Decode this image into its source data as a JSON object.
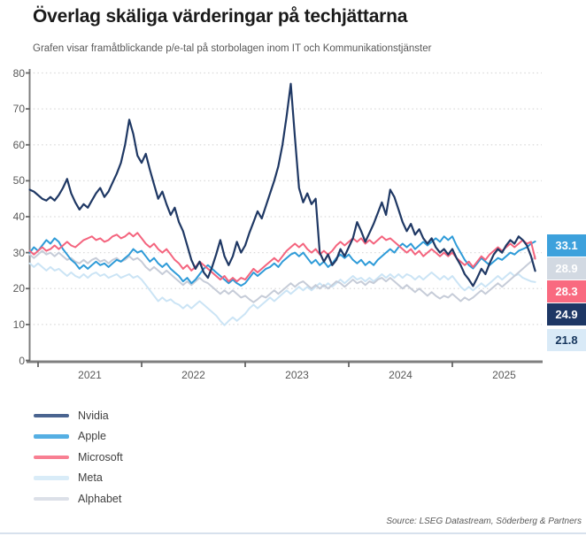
{
  "chart_data": {
    "type": "line",
    "title": "Överlag skäliga värderingar på techjättarna",
    "subtitle": "Grafen visar framåtblickande p/e-tal på storbolagen inom IT och Kommunikationstjänster",
    "source": "Source: LSEG Datastream, Söderberg & Partners",
    "xlabel": "",
    "ylabel": "",
    "ylim": [
      0,
      80
    ],
    "y_ticks": [
      0,
      10,
      20,
      30,
      40,
      50,
      60,
      70,
      80
    ],
    "x_tick_labels": [
      "2021",
      "2022",
      "2023",
      "2024",
      "2025"
    ],
    "x_tick_years": [
      2021,
      2022,
      2023,
      2024,
      2025
    ],
    "grid": "dotted-horizontal",
    "legend_position": "below-left",
    "x_start": 2020.92,
    "x_step": 0.04,
    "series": [
      {
        "name": "Meta",
        "color": "#cbe4f5",
        "values": [
          27,
          26,
          27,
          26,
          25,
          26,
          25,
          25.5,
          24.5,
          23.5,
          24.5,
          23.5,
          23,
          24,
          23,
          24,
          24.5,
          23.5,
          24,
          23,
          23.5,
          24,
          23,
          23.5,
          24,
          23,
          23.5,
          22.5,
          21,
          19.5,
          18,
          16.5,
          17.5,
          16.5,
          17,
          16,
          15.5,
          14.5,
          15.5,
          14.5,
          15.5,
          16.5,
          15.5,
          14.5,
          13.5,
          12.5,
          11,
          9.8,
          11,
          12,
          11,
          12,
          13,
          14.5,
          15.5,
          14.5,
          15.5,
          16.5,
          17.5,
          16.5,
          17.5,
          18.5,
          19.5,
          18.5,
          19.5,
          20.5,
          19.5,
          20.5,
          19.5,
          20.5,
          21.5,
          20.5,
          21.5,
          20.5,
          21.5,
          22.5,
          21.5,
          22.5,
          23.5,
          22.5,
          23,
          22,
          23,
          22,
          23,
          24,
          23,
          24,
          23,
          24,
          23,
          24,
          23.5,
          22.5,
          23.5,
          22.5,
          23.5,
          24.5,
          23.5,
          22.5,
          23.5,
          22.5,
          23.5,
          22,
          20.5,
          19.5,
          20.5,
          19.5,
          20.5,
          21.5,
          20.5,
          21.5,
          22.5,
          23.5,
          22.5,
          23.5,
          24.5,
          23.5,
          24,
          23,
          22.5,
          22,
          21.8
        ]
      },
      {
        "name": "Alphabet",
        "color": "#c6ccd8",
        "values": [
          29.5,
          28.5,
          29.5,
          30.5,
          29.5,
          30,
          29,
          30,
          29,
          28,
          28.5,
          27.5,
          27,
          28,
          27,
          28,
          28.5,
          27.5,
          28,
          27,
          28,
          28.5,
          27.5,
          28,
          29,
          28,
          28.5,
          27.5,
          26,
          25,
          26,
          25,
          24,
          25,
          24,
          23,
          22,
          21,
          22,
          21,
          22,
          23,
          22,
          21.5,
          20.5,
          19.5,
          18.5,
          19.5,
          18.5,
          19.5,
          18.5,
          17.5,
          18,
          17,
          16.2,
          17,
          18,
          17.5,
          18.5,
          19.5,
          18.5,
          19.5,
          20.5,
          21.5,
          20.5,
          21.5,
          22,
          21,
          20,
          21,
          20,
          21,
          20,
          21,
          22,
          21.5,
          20.5,
          21.5,
          22.5,
          21.5,
          22,
          21,
          22,
          21.5,
          22.5,
          23,
          22,
          23,
          22,
          21,
          20,
          21,
          20,
          19,
          20,
          19,
          18,
          19,
          18,
          17.2,
          18,
          17.5,
          18.5,
          17.5,
          16.5,
          17.5,
          16.8,
          17.5,
          18.5,
          19.5,
          18.5,
          19.5,
          20.5,
          21.5,
          20.5,
          21.5,
          22.5,
          23.5,
          24.5,
          25.5,
          26.5,
          27.5,
          28.9
        ]
      },
      {
        "name": "Apple",
        "color": "#2e9bd8",
        "values": [
          30,
          31.5,
          30.5,
          32,
          33.5,
          32.5,
          34,
          33,
          31,
          29.5,
          28,
          27,
          25.5,
          26.5,
          25.5,
          26.5,
          27.5,
          26.5,
          27,
          26,
          27,
          28,
          27.5,
          28.5,
          29.5,
          31,
          30,
          30.5,
          29,
          27.5,
          28.5,
          27,
          26,
          27,
          25.5,
          24.5,
          23.5,
          22,
          23,
          21.5,
          22.5,
          24,
          25.5,
          26.5,
          25.5,
          24.5,
          23.5,
          22.5,
          21.5,
          22.5,
          21.5,
          20.8,
          21.5,
          23,
          24.5,
          23.5,
          24.5,
          25.5,
          26,
          27,
          26,
          27.5,
          28.5,
          29.5,
          30,
          29,
          30,
          28.5,
          27,
          28,
          26.5,
          27.5,
          26,
          27,
          28.5,
          29.5,
          28.5,
          29.5,
          28,
          27,
          28,
          26.5,
          27.5,
          26.5,
          28,
          29,
          30,
          31,
          30,
          31.5,
          32.5,
          31.5,
          32.5,
          31,
          32,
          33,
          32,
          33,
          34,
          33,
          34.5,
          33.5,
          34.5,
          32,
          30,
          28,
          26.5,
          25.6,
          27,
          28.5,
          27.5,
          26.5,
          27.5,
          28.5,
          28,
          29,
          30,
          29.5,
          30.5,
          31,
          31.5,
          32.5,
          33.1
        ]
      },
      {
        "name": "Microsoft",
        "color": "#f4647e",
        "values": [
          30.5,
          29.5,
          30.5,
          31.5,
          30.5,
          31,
          32,
          31,
          32,
          33,
          32,
          31.5,
          32.5,
          33.5,
          34,
          34.5,
          33.5,
          34,
          33,
          33.5,
          34.5,
          35,
          34,
          34.5,
          35.5,
          34.5,
          35.5,
          34,
          32.5,
          31.5,
          32.5,
          31,
          30,
          31,
          29.5,
          28,
          27,
          25.5,
          26.5,
          25,
          26,
          27.5,
          26.5,
          25.5,
          24.5,
          23.5,
          22.5,
          23.5,
          22,
          23,
          22,
          23,
          22.5,
          24,
          25.5,
          24.5,
          25.5,
          26.5,
          27.5,
          28.5,
          27.5,
          29,
          30.5,
          31.5,
          32.5,
          31.5,
          32.5,
          31,
          30,
          31,
          29.5,
          30.5,
          29.5,
          30.5,
          32,
          33,
          32,
          33,
          34,
          33,
          34,
          32.5,
          33.5,
          32.5,
          33.5,
          34.5,
          33.5,
          34,
          33,
          32,
          31,
          30,
          31,
          29.5,
          30.5,
          29,
          30,
          31,
          30,
          29,
          30,
          29,
          30,
          28.5,
          27.5,
          26.5,
          27.5,
          26,
          27.5,
          29,
          28,
          29.5,
          30.5,
          31.5,
          30.5,
          31.5,
          32.5,
          31.5,
          32.5,
          33.5,
          32.5,
          33,
          28.3
        ]
      },
      {
        "name": "Nvidia",
        "color": "#1f3864",
        "values": [
          47.5,
          47,
          46,
          45,
          44.5,
          45.5,
          44.5,
          46,
          48,
          50.5,
          46.5,
          44,
          42,
          43.5,
          42.5,
          44.5,
          46.5,
          48,
          45.5,
          47,
          49.5,
          52,
          55,
          60,
          67,
          63,
          57,
          55,
          57.5,
          53,
          49,
          45,
          47,
          43.5,
          40.5,
          42.5,
          38.5,
          36,
          32,
          28,
          25.5,
          27.5,
          24.5,
          23,
          26,
          29.5,
          33.5,
          29,
          26.5,
          29,
          33,
          30,
          32,
          35.5,
          38.5,
          41.5,
          39.5,
          43,
          46.5,
          50,
          54,
          60,
          68,
          77,
          62,
          48,
          44,
          46.5,
          43.5,
          45,
          30,
          27.5,
          29.5,
          26.5,
          28,
          31,
          29,
          31.5,
          34,
          38.5,
          36,
          33,
          35.5,
          38,
          41,
          44,
          40.5,
          47.5,
          45.5,
          42,
          38.5,
          36,
          38,
          35,
          36.5,
          34,
          32.5,
          34,
          31.5,
          30,
          31,
          29.5,
          31,
          28.5,
          26.5,
          24,
          22.5,
          20.7,
          23,
          25.5,
          24,
          27,
          29.5,
          31,
          30,
          32,
          33.5,
          32.5,
          34.5,
          33.5,
          32,
          29,
          24.9
        ]
      }
    ],
    "end_labels": [
      {
        "series": "Apple",
        "text": "33.1",
        "bg": "#3da1dc",
        "fg": "#ffffff"
      },
      {
        "series": "Alphabet",
        "text": "28.9",
        "bg": "#d2d9e2",
        "fg": "#ffffff"
      },
      {
        "series": "Microsoft",
        "text": "28.3",
        "bg": "#f96a80",
        "fg": "#ffffff"
      },
      {
        "series": "Nvidia",
        "text": "24.9",
        "bg": "#1e3765",
        "fg": "#ffffff"
      },
      {
        "series": "Meta",
        "text": "21.8",
        "bg": "#d9eaf7",
        "fg": "#17375e"
      }
    ]
  },
  "legend": {
    "items": [
      {
        "label": "Nvidia",
        "color": "#4a6490"
      },
      {
        "label": "Apple",
        "color": "#55afe3"
      },
      {
        "label": "Microsoft",
        "color": "#f87f92"
      },
      {
        "label": "Meta",
        "color": "#d9ecf8"
      },
      {
        "label": "Alphabet",
        "color": "#dce0e8"
      }
    ]
  },
  "style": {
    "grid_color": "#d9d9d9",
    "axis_color": "#7f7f7f",
    "tick_color": "#666666"
  }
}
